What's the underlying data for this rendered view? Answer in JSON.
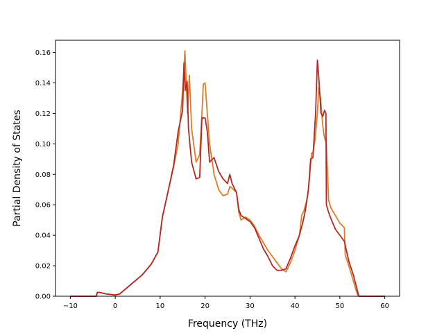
{
  "chart_data": {
    "type": "line",
    "xlabel": "Frequency (THz)",
    "ylabel": "Partial Density of States",
    "xlim": [
      -13.3,
      63.3
    ],
    "ylim": [
      0,
      0.168
    ],
    "xticks": [
      -10,
      0,
      10,
      20,
      30,
      40,
      50,
      60
    ],
    "xtick_labels": [
      "−10",
      "0",
      "10",
      "20",
      "30",
      "40",
      "50",
      "60"
    ],
    "yticks": [
      0,
      0.02,
      0.04,
      0.06,
      0.08,
      0.1,
      0.12,
      0.14,
      0.16
    ],
    "ytick_labels": [
      "0.00",
      "0.02",
      "0.04",
      "0.06",
      "0.08",
      "0.10",
      "0.12",
      "0.14",
      "0.16"
    ],
    "grid": false,
    "series": [
      {
        "color": "#e07b26",
        "x": [
          -10,
          -4.2,
          -4,
          -3.5,
          -2,
          0,
          1,
          2,
          4,
          6,
          8,
          9.5,
          10.5,
          12,
          13,
          14,
          15,
          15.5,
          15.8,
          16.1,
          16.5,
          17,
          18,
          18.8,
          19.3,
          19.6,
          20,
          20.5,
          21,
          22,
          23,
          24,
          25,
          25.5,
          26,
          27,
          27.5,
          28,
          29,
          30,
          31,
          32,
          33,
          34,
          35,
          36,
          37,
          38,
          39,
          40,
          41,
          41.5,
          42,
          42.8,
          43.2,
          43.7,
          44,
          44.5,
          45,
          45.3,
          45.7,
          46.2,
          46.5,
          47,
          47.5,
          48,
          49,
          50,
          51,
          51.2,
          52,
          53,
          53.8,
          54.2,
          55,
          60
        ],
        "y": [
          0,
          0,
          0.0025,
          0.0025,
          0.0015,
          0.0008,
          0.0015,
          0.004,
          0.009,
          0.014,
          0.021,
          0.029,
          0.052,
          0.072,
          0.085,
          0.1,
          0.135,
          0.161,
          0.14,
          0.12,
          0.145,
          0.11,
          0.088,
          0.093,
          0.12,
          0.139,
          0.14,
          0.12,
          0.1,
          0.08,
          0.07,
          0.066,
          0.067,
          0.072,
          0.071,
          0.068,
          0.055,
          0.05,
          0.052,
          0.05,
          0.046,
          0.04,
          0.035,
          0.03,
          0.026,
          0.022,
          0.018,
          0.016,
          0.022,
          0.03,
          0.04,
          0.053,
          0.056,
          0.065,
          0.076,
          0.094,
          0.094,
          0.103,
          0.12,
          0.137,
          0.13,
          0.112,
          0.105,
          0.1,
          0.063,
          0.058,
          0.053,
          0.048,
          0.045,
          0.027,
          0.02,
          0.01,
          0.002,
          0,
          0,
          0
        ]
      },
      {
        "color": "#b22a27",
        "x": [
          -10,
          -4.2,
          -4,
          -3.5,
          -2,
          0,
          1,
          2,
          4,
          6,
          8,
          9.5,
          10.5,
          12,
          13,
          14,
          15,
          15.3,
          15.6,
          16,
          16.3,
          17,
          18,
          18.8,
          19.3,
          20,
          20.5,
          21,
          22,
          23,
          24,
          25,
          25.5,
          26,
          27,
          27.5,
          28,
          29,
          30,
          31,
          32,
          33,
          34,
          35,
          36,
          37,
          38,
          39,
          40,
          41,
          41.8,
          42.3,
          43,
          43.5,
          44,
          44.6,
          45,
          45.3,
          45.8,
          46.2,
          46.6,
          46.9,
          47,
          47.5,
          48,
          49,
          50,
          51,
          52,
          53,
          53.8,
          54.2,
          55,
          60
        ],
        "y": [
          0,
          0,
          0.0025,
          0.0025,
          0.0015,
          0.0008,
          0.0015,
          0.004,
          0.009,
          0.014,
          0.021,
          0.029,
          0.052,
          0.072,
          0.086,
          0.108,
          0.122,
          0.153,
          0.135,
          0.141,
          0.11,
          0.088,
          0.077,
          0.078,
          0.117,
          0.117,
          0.108,
          0.088,
          0.091,
          0.082,
          0.077,
          0.074,
          0.08,
          0.074,
          0.068,
          0.057,
          0.053,
          0.051,
          0.049,
          0.045,
          0.038,
          0.031,
          0.026,
          0.02,
          0.017,
          0.017,
          0.018,
          0.025,
          0.033,
          0.04,
          0.049,
          0.056,
          0.07,
          0.09,
          0.091,
          0.12,
          0.155,
          0.144,
          0.12,
          0.118,
          0.122,
          0.12,
          0.06,
          0.055,
          0.051,
          0.044,
          0.04,
          0.036,
          0.023,
          0.014,
          0.005,
          0,
          0,
          0
        ]
      }
    ]
  }
}
